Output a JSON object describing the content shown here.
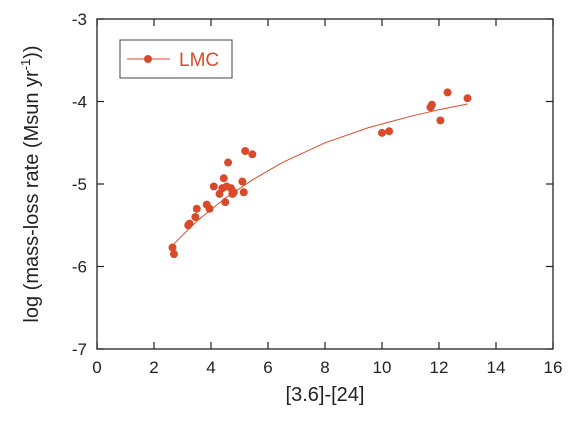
{
  "chart_data": {
    "type": "scatter",
    "xlabel": "[3.6]-[24]",
    "ylabel_main": "log (mass-loss rate (Msun yr",
    "ylabel_sup": "-1",
    "ylabel_end": "))",
    "xlim": [
      0,
      16
    ],
    "ylim": [
      -7,
      -3
    ],
    "xticks": [
      0,
      2,
      4,
      6,
      8,
      10,
      12,
      14,
      16
    ],
    "yticks": [
      -7,
      -6,
      -5,
      -4,
      -3
    ],
    "legend_position": "top-left",
    "grid": false,
    "series": [
      {
        "name": "LMC",
        "color": "#d94a2b",
        "points": [
          {
            "x": 2.65,
            "y": -5.77
          },
          {
            "x": 2.7,
            "y": -5.85
          },
          {
            "x": 3.2,
            "y": -5.5
          },
          {
            "x": 3.25,
            "y": -5.48
          },
          {
            "x": 3.45,
            "y": -5.4
          },
          {
            "x": 3.5,
            "y": -5.3
          },
          {
            "x": 3.85,
            "y": -5.25
          },
          {
            "x": 3.95,
            "y": -5.3
          },
          {
            "x": 4.1,
            "y": -5.03
          },
          {
            "x": 4.3,
            "y": -5.12
          },
          {
            "x": 4.4,
            "y": -5.05
          },
          {
            "x": 4.45,
            "y": -4.93
          },
          {
            "x": 4.5,
            "y": -5.22
          },
          {
            "x": 4.55,
            "y": -5.03
          },
          {
            "x": 4.6,
            "y": -4.74
          },
          {
            "x": 4.7,
            "y": -5.05
          },
          {
            "x": 4.75,
            "y": -5.12
          },
          {
            "x": 4.8,
            "y": -5.1
          },
          {
            "x": 5.1,
            "y": -4.97
          },
          {
            "x": 5.15,
            "y": -5.1
          },
          {
            "x": 5.2,
            "y": -4.6
          },
          {
            "x": 5.45,
            "y": -4.64
          },
          {
            "x": 10.0,
            "y": -4.38
          },
          {
            "x": 10.25,
            "y": -4.36
          },
          {
            "x": 11.7,
            "y": -4.07
          },
          {
            "x": 11.75,
            "y": -4.04
          },
          {
            "x": 12.05,
            "y": -4.23
          },
          {
            "x": 12.3,
            "y": -3.89
          },
          {
            "x": 13.0,
            "y": -3.96
          }
        ],
        "fit_line": [
          {
            "x": 2.6,
            "y": -5.76
          },
          {
            "x": 3.5,
            "y": -5.45
          },
          {
            "x": 4.5,
            "y": -5.17
          },
          {
            "x": 5.5,
            "y": -4.94
          },
          {
            "x": 6.5,
            "y": -4.74
          },
          {
            "x": 8.0,
            "y": -4.5
          },
          {
            "x": 9.5,
            "y": -4.32
          },
          {
            "x": 11.0,
            "y": -4.18
          },
          {
            "x": 12.0,
            "y": -4.1
          },
          {
            "x": 13.0,
            "y": -4.03
          }
        ]
      }
    ]
  }
}
